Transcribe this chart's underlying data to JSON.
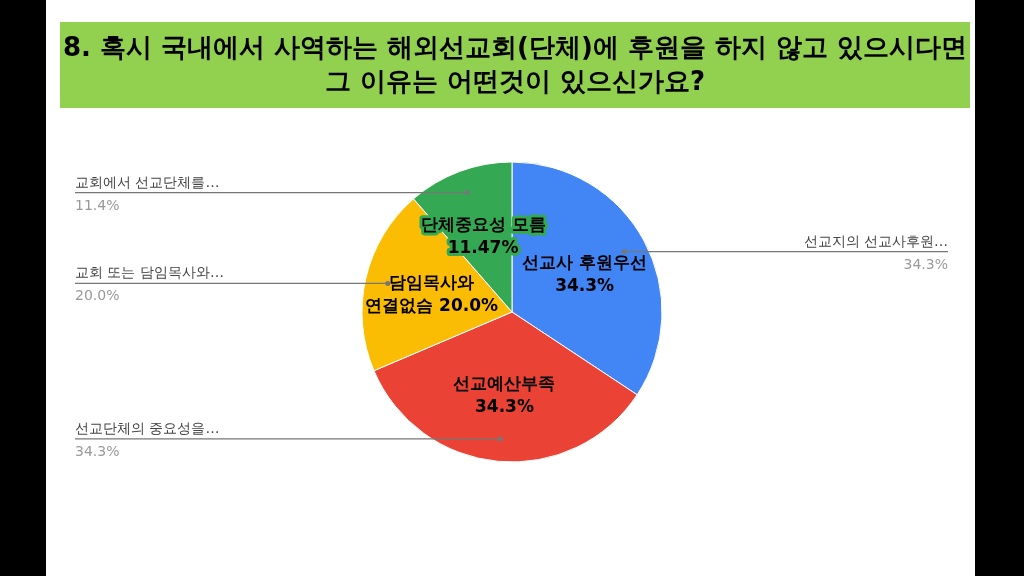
{
  "chart_data": {
    "type": "pie",
    "title": "8. 혹시 국내에서 사역하는 해외선교회(단체)에 후원을 하지 않고 있으시다면 그 이유는 어떤것이 있으신가요?",
    "categories": [
      "선교지의 선교사후원…",
      "선교단체의 중요성을…",
      "교회 또는 담임목사와…",
      "교회에서 선교단체를…"
    ],
    "values": [
      34.3,
      34.3,
      20.0,
      11.4
    ],
    "value_labels": [
      "34.3%",
      "34.3%",
      "20.0%",
      "11.4%"
    ],
    "colors": [
      "#4285f4",
      "#ea4335",
      "#fbbc04",
      "#34a853"
    ],
    "annotations": [
      "선교사 후원우선\n34.3%",
      "선교예산부족\n34.3%",
      "담임목사와\n연결없슴 20.0%",
      "단체중요성 모름\n11.47%"
    ]
  }
}
